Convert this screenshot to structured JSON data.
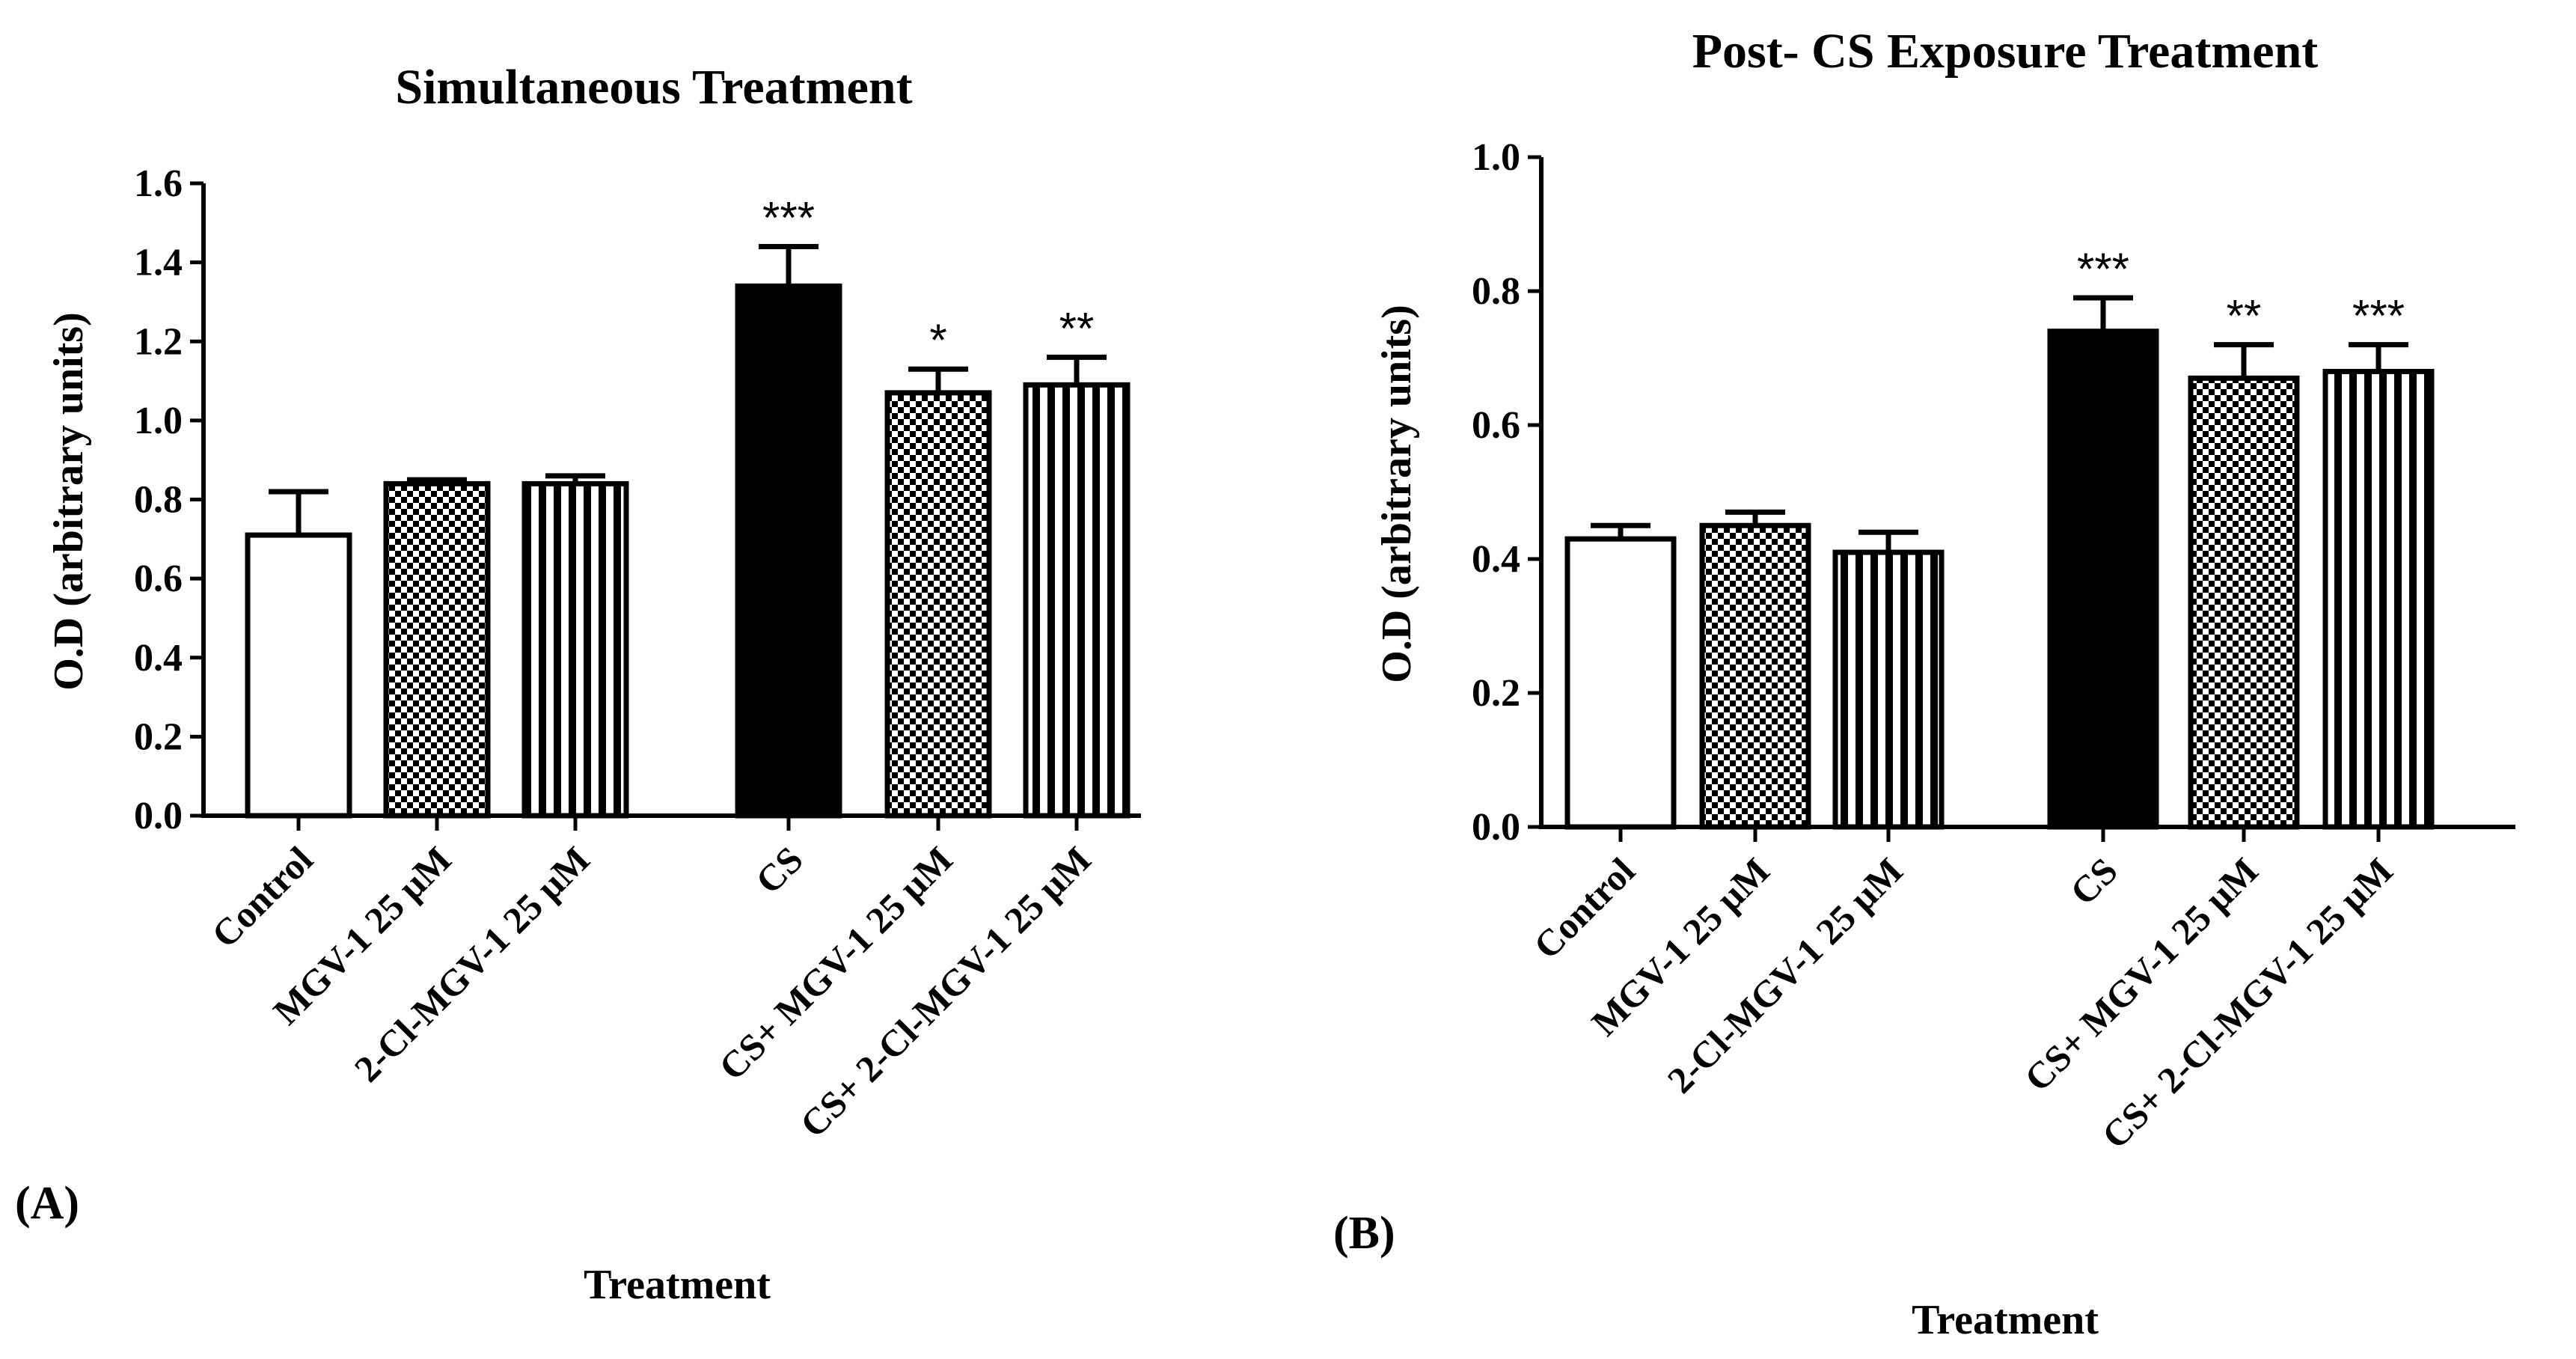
{
  "chart_data": [
    {
      "type": "bar",
      "panel_label": "(A)",
      "title": "Simultaneous Treatment",
      "xlabel": "Treatment",
      "ylabel": "O.D (arbitrary units)",
      "ylim": [
        0,
        1.6
      ],
      "yticks": [
        "0.0",
        "0.2",
        "0.4",
        "0.6",
        "0.8",
        "1.0",
        "1.2",
        "1.4",
        "1.6"
      ],
      "categories": [
        "Control",
        "MGV-1 25 µM",
        "2-Cl-MGV-1 25 µM",
        "CS",
        "CS+ MGV-1 25 µM",
        "CS+ 2-Cl-MGV-1 25 µM"
      ],
      "values": [
        0.71,
        0.84,
        0.84,
        1.34,
        1.07,
        1.09
      ],
      "errors": [
        0.11,
        0.01,
        0.02,
        0.1,
        0.06,
        0.07
      ],
      "significance": [
        "",
        "",
        "",
        "***",
        "*",
        "**"
      ],
      "patterns": [
        "white",
        "checker",
        "stripes",
        "black",
        "checker",
        "stripes"
      ]
    },
    {
      "type": "bar",
      "panel_label": "(B)",
      "title": "Post- CS Exposure Treatment",
      "xlabel": "Treatment",
      "ylabel": "O.D (arbitrary units)",
      "ylim": [
        0,
        1.0
      ],
      "yticks": [
        "0.0",
        "0.2",
        "0.4",
        "0.6",
        "0.8",
        "1.0"
      ],
      "categories": [
        "Control",
        "MGV-1 25 µM",
        "2-Cl-MGV-1 25 µM",
        "CS",
        "CS+ MGV-1 25 µM",
        "CS+ 2-Cl-MGV-1 25 µM"
      ],
      "values": [
        0.43,
        0.45,
        0.41,
        0.74,
        0.67,
        0.68
      ],
      "errors": [
        0.02,
        0.02,
        0.03,
        0.05,
        0.05,
        0.04
      ],
      "significance": [
        "",
        "",
        "",
        "***",
        "**",
        "***"
      ],
      "patterns": [
        "white",
        "checker",
        "stripes",
        "black",
        "checker",
        "stripes"
      ]
    }
  ]
}
